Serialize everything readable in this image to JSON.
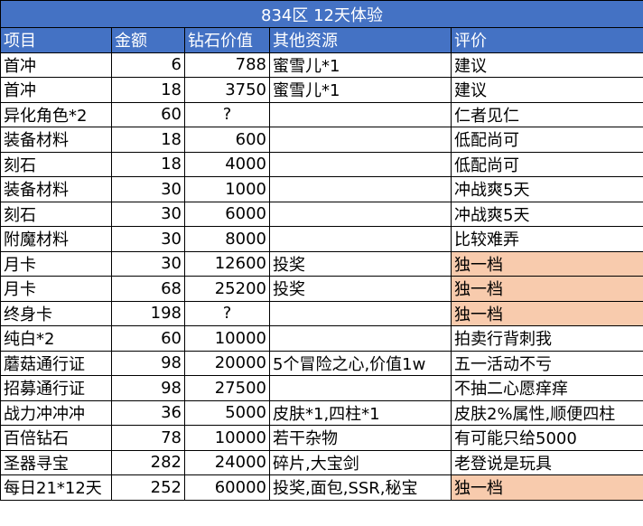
{
  "title": "834区 12天体验",
  "headers": [
    "项目",
    "金额",
    "钻石价值",
    "其他资源",
    "评价"
  ],
  "highlight_color": "#f8cbad",
  "header_color": "#4472c4",
  "rows": [
    {
      "item": "首冲",
      "amount": "6",
      "diamond": "788",
      "other": "蜜雪儿*1",
      "rating": "建议",
      "hl": false
    },
    {
      "item": "首冲",
      "amount": "18",
      "diamond": "3750",
      "other": "蜜雪儿*1",
      "rating": "建议",
      "hl": false
    },
    {
      "item": "异化角色*2",
      "amount": "60",
      "diamond": "?",
      "other": "",
      "rating": "仁者见仁",
      "hl": false
    },
    {
      "item": "装备材料",
      "amount": "18",
      "diamond": "600",
      "other": "",
      "rating": "低配尚可",
      "hl": false
    },
    {
      "item": "刻石",
      "amount": "18",
      "diamond": "4000",
      "other": "",
      "rating": "低配尚可",
      "hl": false
    },
    {
      "item": "装备材料",
      "amount": "30",
      "diamond": "1000",
      "other": "",
      "rating": "冲战爽5天",
      "hl": false
    },
    {
      "item": "刻石",
      "amount": "30",
      "diamond": "6000",
      "other": "",
      "rating": "冲战爽5天",
      "hl": false
    },
    {
      "item": "附魔材料",
      "amount": "30",
      "diamond": "8000",
      "other": "",
      "rating": "比较难弄",
      "hl": false
    },
    {
      "item": "月卡",
      "amount": "30",
      "diamond": "12600",
      "other": "投奖",
      "rating": "独一档",
      "hl": true
    },
    {
      "item": "月卡",
      "amount": "68",
      "diamond": "25200",
      "other": "投奖",
      "rating": "独一档",
      "hl": true
    },
    {
      "item": "终身卡",
      "amount": "198",
      "diamond": "?",
      "other": "",
      "rating": "独一档",
      "hl": true
    },
    {
      "item": "纯白*2",
      "amount": "60",
      "diamond": "10000",
      "other": "",
      "rating": "拍卖行背刺我",
      "hl": false
    },
    {
      "item": "蘑菇通行证",
      "amount": "98",
      "diamond": "20000",
      "other": "5个冒险之心,价值1w",
      "rating": "五一活动不亏",
      "hl": false
    },
    {
      "item": "招募通行证",
      "amount": "98",
      "diamond": "27500",
      "other": "",
      "rating": "不抽二心愿痒痒",
      "hl": false
    },
    {
      "item": "战力冲冲冲",
      "amount": "36",
      "diamond": "5000",
      "other": "皮肤*1,四柱*1",
      "rating": "皮肤2%属性,顺便四柱",
      "hl": false
    },
    {
      "item": "百倍钻石",
      "amount": "78",
      "diamond": "10000",
      "other": "若干杂物",
      "rating": "有可能只给5000",
      "hl": false
    },
    {
      "item": "圣器寻宝",
      "amount": "282",
      "diamond": "24000",
      "other": "碎片,大宝剑",
      "rating": "老登说是玩具",
      "hl": false
    },
    {
      "item": "每日21*12天",
      "amount": "252",
      "diamond": "60000",
      "other": "投奖,面包,SSR,秘宝",
      "rating": "独一档",
      "hl": true
    }
  ]
}
